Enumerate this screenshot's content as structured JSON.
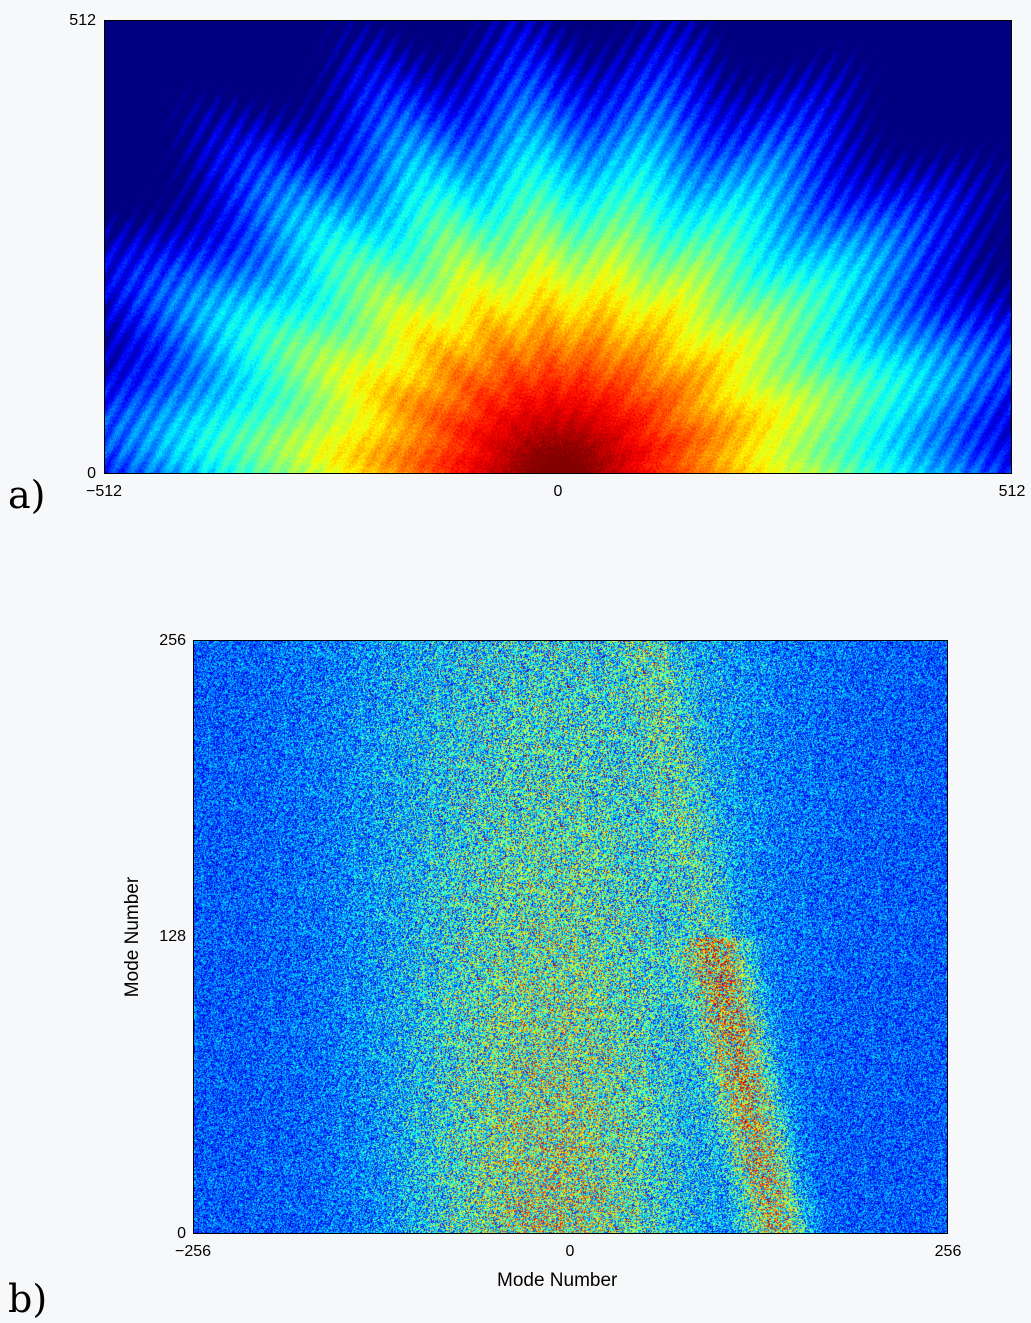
{
  "chart_data": [
    {
      "type": "heatmap",
      "panel": "a)",
      "x_ticks": [
        "−512",
        "0",
        "512"
      ],
      "y_ticks": [
        "0",
        "512"
      ],
      "xlim": [
        -512,
        512
      ],
      "ylim": [
        0,
        512
      ],
      "xlabel": "",
      "ylabel": "",
      "colormap": "jet",
      "description_of_values": "high (red) near origin, decreasing outward",
      "peak": {
        "x": 0,
        "y": 0
      },
      "colors": {
        "background": "#263592"
      }
    },
    {
      "type": "heatmap",
      "panel": "b)",
      "x_ticks": [
        "−256",
        "0",
        "256"
      ],
      "y_ticks": [
        "0",
        "128",
        "256"
      ],
      "xlim": [
        -256,
        256
      ],
      "ylim": [
        0,
        256
      ],
      "xlabel": "Mode Number",
      "ylabel": "Mode Number",
      "colormap": "jet",
      "colors": {
        "background": "#263592"
      }
    }
  ]
}
